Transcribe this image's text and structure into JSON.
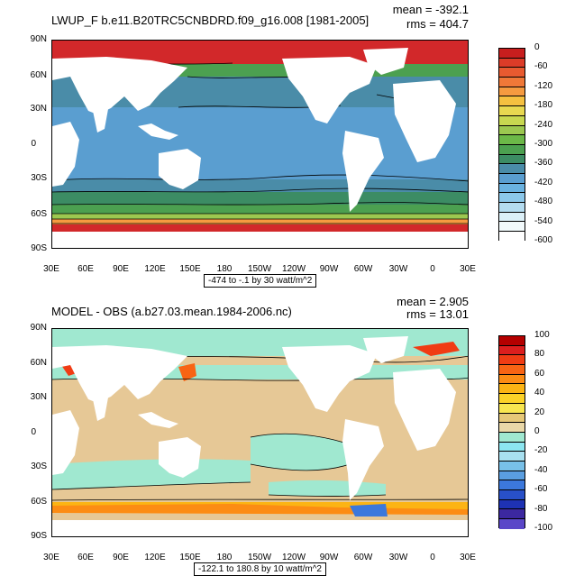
{
  "top": {
    "title": "LWUP_F b.e11.B20TRC5CNBDRD.f09_g16.008 [1981-2005]",
    "mean": "mean = -392.1",
    "rms": "rms = 404.7",
    "lat_labels": [
      "90N",
      "60N",
      "30N",
      "0",
      "30S",
      "60S",
      "90S"
    ],
    "lon_labels": [
      "30E",
      "60E",
      "90E",
      "120E",
      "150E",
      "180",
      "150W",
      "120W",
      "90W",
      "60W",
      "30W",
      "0",
      "30E"
    ],
    "contour_note": "-474 to -.1 by 30 watt/m^2",
    "colorbar": {
      "labels": [
        "0",
        "-60",
        "-120",
        "-180",
        "-240",
        "-300",
        "-360",
        "-420",
        "-480",
        "-540",
        "-600"
      ],
      "colors": [
        "#c81e1e",
        "#dc3c28",
        "#e85a30",
        "#f07838",
        "#f59a40",
        "#f5c040",
        "#e8d850",
        "#c8d850",
        "#9cc850",
        "#6cb848",
        "#4ca050",
        "#3c8c64",
        "#4a8ca8",
        "#5a9ed0",
        "#6ab2e0",
        "#8cc8ea",
        "#b4dcf0",
        "#dcf0f8",
        "#f2fafc",
        "#ffffff"
      ]
    }
  },
  "bottom": {
    "title": "MODEL - OBS (a.b27.03.mean.1984-2006.nc)",
    "mean": "mean = 2.905",
    "rms": "rms = 13.01",
    "lat_labels": [
      "90N",
      "60N",
      "30N",
      "0",
      "30S",
      "60S",
      "90S"
    ],
    "lon_labels": [
      "30E",
      "60E",
      "90E",
      "120E",
      "150E",
      "180",
      "150W",
      "120W",
      "90W",
      "60W",
      "30W",
      "0",
      "30E"
    ],
    "contour_note": "-122.1 to 180.8 by 10 watt/m^2",
    "colorbar": {
      "labels": [
        "100",
        "80",
        "60",
        "40",
        "20",
        "0",
        "-20",
        "-40",
        "-60",
        "-80",
        "-100"
      ],
      "colors": [
        "#b40000",
        "#dc1e1e",
        "#f03c14",
        "#f86414",
        "#fc8c14",
        "#fcb414",
        "#fcd228",
        "#f8e650",
        "#e6c878",
        "#ead8a8",
        "#a0e8d0",
        "#8ce6f0",
        "#a8e0f0",
        "#78c0e8",
        "#5a9ee0",
        "#3c78dc",
        "#2850c8",
        "#1e32b4",
        "#3c28a0",
        "#5a46c8"
      ]
    }
  }
}
